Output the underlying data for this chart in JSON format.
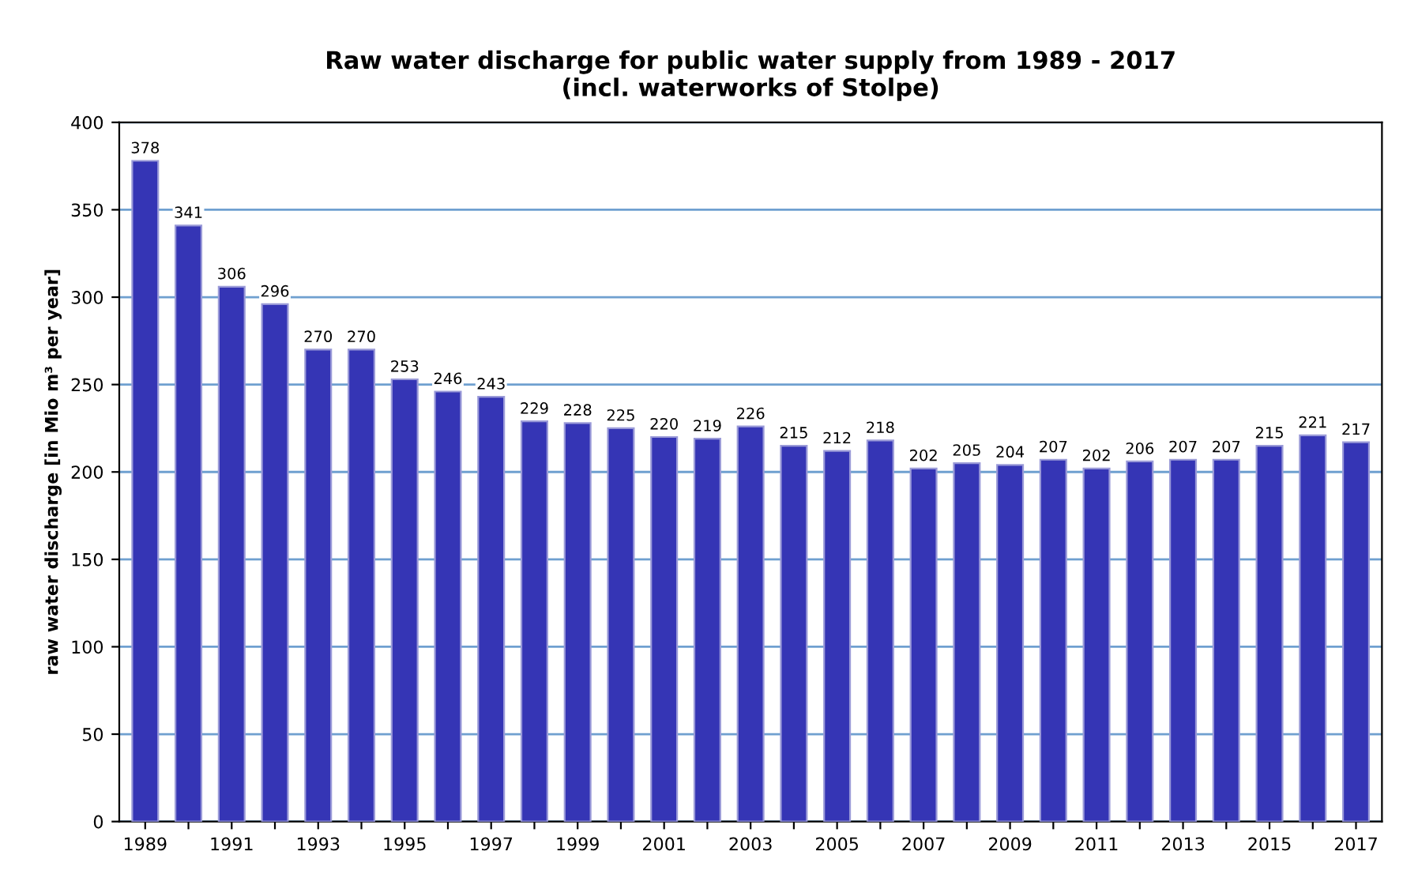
{
  "chart_data": {
    "type": "bar",
    "title": "Raw water discharge for public water supply from 1989 - 2017\n(incl. waterworks of Stolpe)",
    "ylabel": "raw water discharge [in Mio m³ per year]",
    "categories": [
      "1989",
      null,
      "1991",
      null,
      "1993",
      null,
      "1995",
      null,
      "1997",
      null,
      "1999",
      null,
      "2001",
      null,
      "2003",
      null,
      "2005",
      null,
      "2007",
      null,
      "2009",
      null,
      "2011",
      null,
      "2013",
      null,
      "2015",
      null,
      "2017"
    ],
    "values": [
      378,
      341,
      306,
      296,
      270,
      270,
      253,
      246,
      243,
      229,
      228,
      225,
      220,
      219,
      226,
      215,
      212,
      218,
      202,
      205,
      204,
      207,
      202,
      206,
      207,
      207,
      215,
      221,
      217
    ],
    "color": "#3535b5",
    "ylim": [
      0,
      400
    ],
    "yticks": [
      0,
      50,
      100,
      150,
      200,
      250,
      300,
      350,
      400
    ],
    "grid": "y",
    "data_labels": true
  }
}
